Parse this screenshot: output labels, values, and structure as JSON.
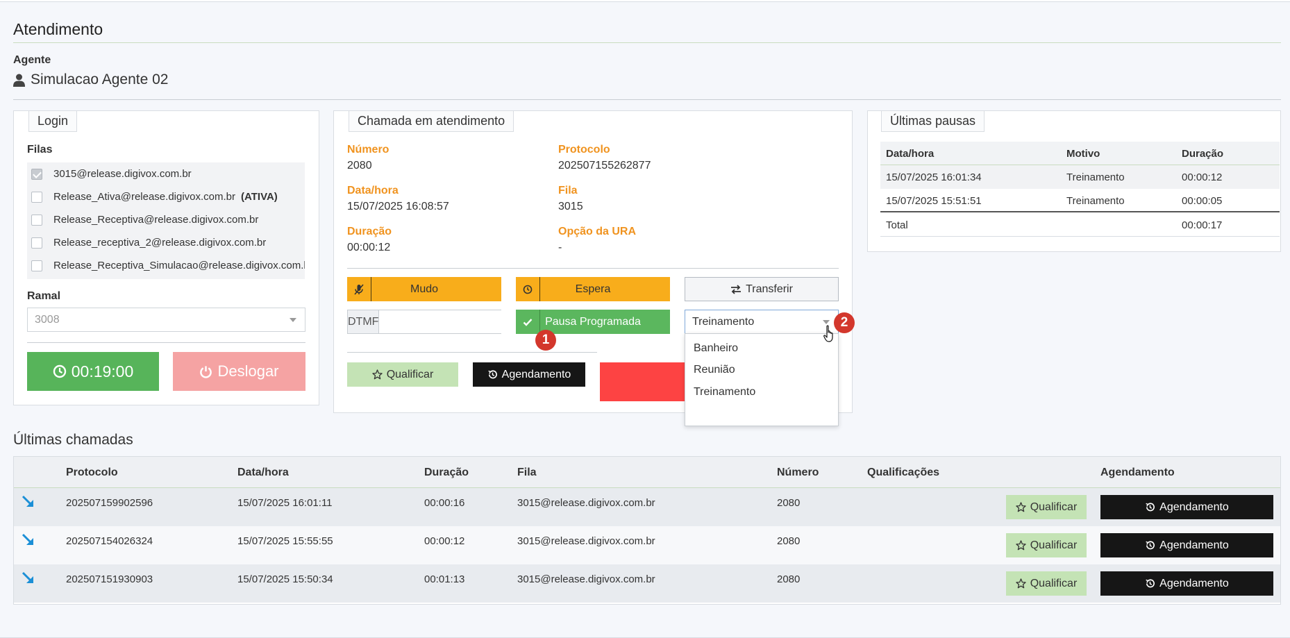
{
  "page": {
    "title": "Atendimento"
  },
  "agent": {
    "label": "Agente",
    "name": "Simulacao Agente 02",
    "icon": "user-icon"
  },
  "login": {
    "legend": "Login",
    "queues_label": "Filas",
    "queues": [
      {
        "name": "3015@release.digivox.com.br",
        "checked": true,
        "tag": ""
      },
      {
        "name": "Release_Ativa@release.digivox.com.br",
        "checked": false,
        "tag": "(ATIVA)"
      },
      {
        "name": "Release_Receptiva@release.digivox.com.br",
        "checked": false,
        "tag": ""
      },
      {
        "name": "Release_receptiva_2@release.digivox.com.br",
        "checked": false,
        "tag": ""
      },
      {
        "name": "Release_Receptiva_Simulacao@release.digivox.com.br",
        "checked": false,
        "tag": ""
      }
    ],
    "ramal_label": "Ramal",
    "ramal_value": "3008",
    "timer_label": "00:19:00",
    "logout_label": "Deslogar"
  },
  "call": {
    "legend": "Chamada em atendimento",
    "numero_label": "Número",
    "numero_value": "2080",
    "protocolo_label": "Protocolo",
    "protocolo_value": "202507155262877",
    "datahora_label": "Data/hora",
    "datahora_value": "15/07/2025 16:08:57",
    "fila_label": "Fila",
    "fila_value": "3015",
    "duracao_label": "Duração",
    "duracao_value": "00:00:12",
    "ura_label": "Opção da URA",
    "ura_value": "-",
    "mute_label": "Mudo",
    "hold_label": "Espera",
    "transfer_label": "Transferir",
    "dtmf_label": "DTMF",
    "dtmf_value": "",
    "pause_label": "Pausa Programada",
    "pause_select_value": "Treinamento",
    "pause_options": [
      "Banheiro",
      "Reunião",
      "Treinamento"
    ],
    "qualify_label": "Qualificar",
    "schedule_label": "Agendamento",
    "badges": [
      "1",
      "2"
    ]
  },
  "pauses": {
    "legend": "Últimas pausas",
    "headers": {
      "datahora": "Data/hora",
      "motivo": "Motivo",
      "duracao": "Duração"
    },
    "rows": [
      {
        "datahora": "15/07/2025 16:01:34",
        "motivo": "Treinamento",
        "duracao": "00:00:12"
      },
      {
        "datahora": "15/07/2025 15:51:51",
        "motivo": "Treinamento",
        "duracao": "00:00:05"
      }
    ],
    "total_label": "Total",
    "total_value": "00:00:17"
  },
  "calls": {
    "title": "Últimas chamadas",
    "headers": {
      "protocolo": "Protocolo",
      "datahora": "Data/hora",
      "duracao": "Duração",
      "fila": "Fila",
      "numero": "Número",
      "qualificacoes": "Qualificações",
      "agendamento": "Agendamento"
    },
    "rows": [
      {
        "protocolo": "202507159902596",
        "datahora": "15/07/2025 16:01:11",
        "duracao": "00:00:16",
        "fila": "3015@release.digivox.com.br",
        "numero": "2080"
      },
      {
        "protocolo": "202507154026324",
        "datahora": "15/07/2025 15:55:55",
        "duracao": "00:00:12",
        "fila": "3015@release.digivox.com.br",
        "numero": "2080"
      },
      {
        "protocolo": "202507151930903",
        "datahora": "15/07/2025 15:50:34",
        "duracao": "00:01:13",
        "fila": "3015@release.digivox.com.br",
        "numero": "2080"
      }
    ],
    "qualify_label": "Qualificar",
    "schedule_label": "Agendamento",
    "direction_icon": "incoming-call-arrow-icon"
  },
  "colors": {
    "field_label": "#f0931f",
    "warning": "#f8ad1b",
    "success": "#5bb75e",
    "danger": "#fd4343",
    "danger_light": "#f5a3a3",
    "qualify": "#c4e3b5",
    "dark": "#161616",
    "badge": "#d3372c",
    "incoming_arrow": "#1b8fd6"
  }
}
